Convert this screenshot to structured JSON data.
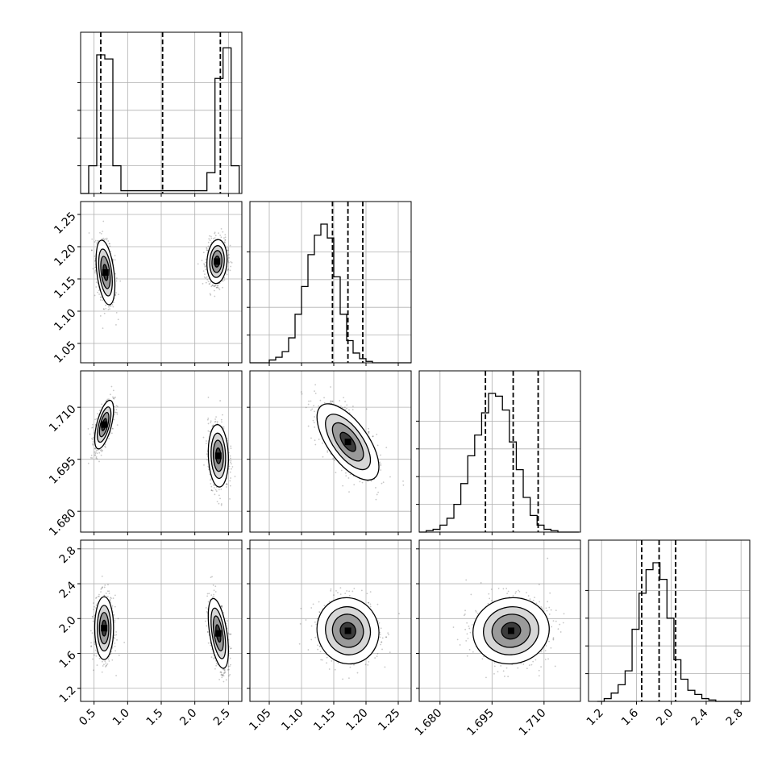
{
  "chart_data": {
    "type": "corner",
    "grid": true,
    "parameters": [
      {
        "range": [
          0.3,
          2.7
        ],
        "ticks": [
          "0.5",
          "1.0",
          "1.5",
          "2.0",
          "2.5"
        ],
        "tick_values": [
          0.5,
          1.0,
          1.5,
          2.0,
          2.5
        ],
        "quantiles": [
          0.6,
          1.52,
          2.38
        ],
        "histogram": {
          "bins": [
            0.3,
            0.42,
            0.54,
            0.66,
            0.78,
            0.9,
            2.06,
            2.18,
            2.3,
            2.42,
            2.54,
            2.66
          ],
          "counts": [
            0.0,
            0.2,
            1.0,
            0.97,
            0.2,
            0.02,
            0.02,
            0.15,
            0.83,
            1.05,
            0.2,
            0.0
          ]
        }
      },
      {
        "range": [
          1.02,
          1.27
        ],
        "ticks": [
          "1.05",
          "1.10",
          "1.15",
          "1.20",
          "1.25"
        ],
        "tick_values": [
          1.05,
          1.1,
          1.15,
          1.2,
          1.25
        ],
        "quantiles": [
          1.148,
          1.172,
          1.195
        ],
        "histogram": {
          "x_start": 1.02,
          "bin_width": 0.01,
          "counts": [
            0.0,
            0.0,
            0.0,
            0.02,
            0.04,
            0.08,
            0.18,
            0.35,
            0.55,
            0.78,
            0.92,
            1.0,
            0.9,
            0.62,
            0.35,
            0.16,
            0.07,
            0.03,
            0.01,
            0.0,
            0.0,
            0.0,
            0.0,
            0.0,
            0.0
          ]
        }
      },
      {
        "range": [
          1.674,
          1.7205
        ],
        "ticks": [
          "1.680",
          "1.695",
          "1.710"
        ],
        "tick_values": [
          1.68,
          1.695,
          1.71
        ],
        "quantiles": [
          1.6931,
          1.7011,
          1.7083
        ],
        "histogram": {
          "x_start": 1.674,
          "bin_width": 0.002,
          "counts": [
            0.0,
            0.01,
            0.02,
            0.05,
            0.1,
            0.2,
            0.35,
            0.55,
            0.7,
            0.86,
            1.0,
            0.98,
            0.88,
            0.65,
            0.45,
            0.25,
            0.12,
            0.05,
            0.02,
            0.01,
            0.0,
            0.0,
            0.0
          ]
        }
      },
      {
        "range": [
          1.05,
          2.9
        ],
        "ticks": [
          "1.2",
          "1.6",
          "2.0",
          "2.4",
          "2.8"
        ],
        "tick_values": [
          1.2,
          1.6,
          2.0,
          2.4,
          2.8
        ],
        "quantiles": [
          1.66,
          1.86,
          2.05
        ],
        "histogram": {
          "x_start": 1.15,
          "bin_width": 0.08,
          "counts": [
            0.0,
            0.02,
            0.06,
            0.12,
            0.22,
            0.52,
            0.78,
            0.95,
            1.0,
            0.88,
            0.6,
            0.3,
            0.16,
            0.08,
            0.05,
            0.02,
            0.01,
            0.0,
            0.0,
            0.0,
            0.0,
            0.0
          ]
        }
      }
    ],
    "pairs": [
      {
        "row": 1,
        "col": 0,
        "blobs": [
          {
            "mx": 0.67,
            "my": 1.16,
            "sx": 0.07,
            "sy": 0.025,
            "rho": -0.4
          },
          {
            "mx": 2.33,
            "my": 1.177,
            "sx": 0.075,
            "sy": 0.017,
            "rho": 0.1
          }
        ]
      },
      {
        "row": 2,
        "col": 0,
        "blobs": [
          {
            "mx": 0.65,
            "my": 1.705,
            "sx": 0.07,
            "sy": 0.0035,
            "rho": 0.6
          },
          {
            "mx": 2.35,
            "my": 1.696,
            "sx": 0.075,
            "sy": 0.0045,
            "rho": -0.1
          }
        ]
      },
      {
        "row": 3,
        "col": 0,
        "blobs": [
          {
            "mx": 0.65,
            "my": 1.89,
            "sx": 0.07,
            "sy": 0.18,
            "rho": 0.0
          },
          {
            "mx": 2.35,
            "my": 1.83,
            "sx": 0.075,
            "sy": 0.2,
            "rho": -0.5
          }
        ]
      },
      {
        "row": 2,
        "col": 1,
        "blobs": [
          {
            "mx": 1.172,
            "my": 1.7,
            "sx": 0.024,
            "sy": 0.0055,
            "rho": -0.65
          }
        ]
      },
      {
        "row": 3,
        "col": 1,
        "blobs": [
          {
            "mx": 1.172,
            "my": 1.86,
            "sx": 0.024,
            "sy": 0.19,
            "rho": -0.05
          }
        ]
      },
      {
        "row": 3,
        "col": 2,
        "blobs": [
          {
            "mx": 1.7005,
            "my": 1.86,
            "sx": 0.0055,
            "sy": 0.19,
            "rho": 0.05
          }
        ]
      }
    ]
  }
}
